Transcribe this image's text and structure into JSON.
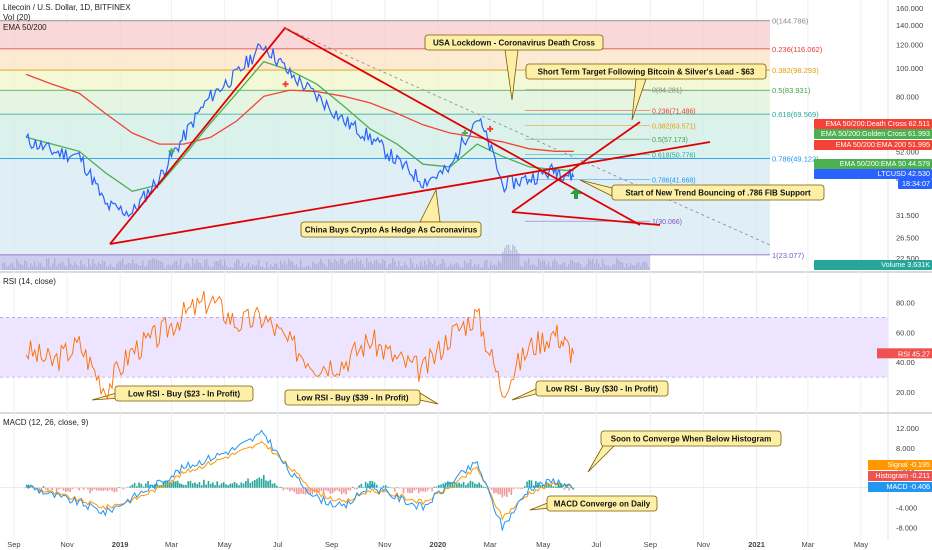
{
  "header": {
    "symbol_line": "Litecoin / U.S. Dollar, 1D, BITFINEX",
    "volume_indicator": "Vol (20)",
    "ema_indicator": "EMA 50/200"
  },
  "rsi_panel": {
    "title": "RSI (14, close)"
  },
  "macd_panel": {
    "title": "MACD (12, 26, close, 9)"
  },
  "colors": {
    "price": "#2962ff",
    "ema50": "#4caf50",
    "ema200": "#f44336",
    "trend": "#e00000",
    "rsi": "#ff6d00",
    "macd": "#2196f3",
    "signal": "#ff9800",
    "callout_bg": "#fdf0a6",
    "callout_border": "#7a5a00"
  },
  "chart_data": [
    {
      "type": "line",
      "panel": "price",
      "title": "Litecoin / U.S. Dollar, 1D, BITFINEX",
      "y_scale": "log",
      "ylim": [
        20.5,
        165
      ],
      "x": [
        "2018-09",
        "2018-10",
        "2018-11",
        "2018-12",
        "2019-01",
        "2019-02",
        "2019-03",
        "2019-04",
        "2019-05",
        "2019-06",
        "2019-07",
        "2019-08",
        "2019-09",
        "2019-10",
        "2019-11",
        "2019-12",
        "2020-01",
        "2020-02",
        "2020-03",
        "2020-04",
        "2020-05",
        "2020-06-05"
      ],
      "x_tick_labels": [
        "Sep",
        "Nov",
        "2019",
        "Mar",
        "May",
        "Jul",
        "Sep",
        "Nov",
        "2020",
        "Mar",
        "May",
        "Jul",
        "Sep",
        "Nov",
        "2021",
        "Mar",
        "May"
      ],
      "y_tick_labels": [
        "160.000",
        "140.000",
        "120.000",
        "100.000",
        "80.000",
        "65.000",
        "52.000",
        "42.000",
        "31.500",
        "26.500",
        "22.500"
      ],
      "series": [
        {
          "name": "LTCUSD",
          "values": [
            57,
            52,
            50,
            34,
            32,
            42,
            58,
            80,
            95,
            120,
            95,
            80,
            66,
            58,
            48,
            41,
            45,
            68,
            40,
            42,
            45,
            42.53
          ]
        },
        {
          "name": "EMA 50",
          "values": [
            58,
            55,
            52,
            44,
            38,
            40,
            50,
            65,
            82,
            105,
            98,
            88,
            74,
            62,
            55,
            47,
            46,
            55,
            50,
            46,
            45,
            44.58
          ]
        },
        {
          "name": "EMA 200",
          "values": [
            95,
            88,
            82,
            70,
            60,
            55,
            55,
            58,
            66,
            80,
            84,
            83,
            80,
            76,
            70,
            64,
            60,
            58,
            56,
            53,
            52,
            51.99
          ]
        }
      ],
      "fib_levels": [
        {
          "label": "0(144.786)",
          "value": 144.786
        },
        {
          "label": "0.236(116.062)",
          "value": 116.062
        },
        {
          "label": "0.382(98.293)",
          "value": 98.293
        },
        {
          "label": "0.5(83.931)",
          "value": 83.931
        },
        {
          "label": "0.618(69.569)",
          "value": 69.569
        },
        {
          "label": "0.786(49.122)",
          "value": 49.122
        },
        {
          "label": "1(23.077)",
          "value": 23.077
        }
      ],
      "fib_levels_inner": [
        {
          "label": "0(84.281)",
          "value": 84.281
        },
        {
          "label": "0.236(71.486)",
          "value": 71.486
        },
        {
          "label": "0.382(63.571)",
          "value": 63.571
        },
        {
          "label": "0.5(57.173)",
          "value": 57.173
        },
        {
          "label": "0.618(50.776)",
          "value": 50.776
        },
        {
          "label": "0.786(41.668)",
          "value": 41.668
        },
        {
          "label": "1(30.066)",
          "value": 30.066
        }
      ],
      "price_tags": [
        {
          "label": "EMA 50/200:Death Cross",
          "value": "62.511",
          "color": "#f44336"
        },
        {
          "label": "EMA 50/200:Golden Cross",
          "value": "61.993",
          "color": "#4caf50"
        },
        {
          "label": "EMA 50/200:EMA 200",
          "value": "51.995",
          "color": "#f44336"
        },
        {
          "label": "EMA 50/200:EMA 50",
          "value": "44.579",
          "color": "#4caf50"
        },
        {
          "label": "LTCUSD",
          "value": "42.530",
          "color": "#2962ff"
        },
        {
          "label": "",
          "value": "18:34:07",
          "color": "#2962ff"
        },
        {
          "label": "Volume",
          "value": "3.631K",
          "color": "#26a69a"
        }
      ],
      "annotations": [
        "USA Lockdown - Coronavirus Death Cross",
        "Short Term Target Following Bitcoin & Silver's Lead - $63",
        "Start of New Trend Bouncing of .786 FIB Support",
        "China Buys Crypto As Hedge As Coronavirus"
      ]
    },
    {
      "type": "line",
      "panel": "rsi",
      "title": "RSI (14, close)",
      "ylim": [
        10,
        95
      ],
      "y_tick_labels": [
        "80.00",
        "60.00",
        "40.00",
        "20.00"
      ],
      "band": [
        30,
        70
      ],
      "x": [
        "2018-09",
        "2018-10",
        "2018-11",
        "2018-12",
        "2019-01",
        "2019-02",
        "2019-03",
        "2019-04",
        "2019-05",
        "2019-06",
        "2019-07",
        "2019-08",
        "2019-09",
        "2019-10",
        "2019-11",
        "2019-12",
        "2020-01",
        "2020-02",
        "2020-03",
        "2020-04",
        "2020-05",
        "2020-06-05"
      ],
      "series": [
        {
          "name": "RSI",
          "values": [
            48,
            40,
            52,
            22,
            48,
            58,
            72,
            82,
            66,
            70,
            52,
            38,
            40,
            55,
            42,
            34,
            58,
            72,
            22,
            50,
            60,
            45.27
          ]
        }
      ],
      "current_tag": {
        "label": "RSI",
        "value": "45.27"
      },
      "annotations": [
        "Low RSI - Buy ($23 - In Profit)",
        "Low RSI - Buy ($39 - In Profit)",
        "Low RSI - Buy ($30 - In Profit)"
      ]
    },
    {
      "type": "line",
      "panel": "macd",
      "title": "MACD (12, 26, close, 9)",
      "ylim": [
        -10.5,
        14
      ],
      "y_tick_labels": [
        "12.000",
        "8.000",
        "4.000",
        "-4.000",
        "-8.000"
      ],
      "x": [
        "2018-09",
        "2018-10",
        "2018-11",
        "2018-12",
        "2019-01",
        "2019-02",
        "2019-03",
        "2019-04",
        "2019-05",
        "2019-06",
        "2019-07",
        "2019-08",
        "2019-09",
        "2019-10",
        "2019-11",
        "2019-12",
        "2020-01",
        "2020-02",
        "2020-03",
        "2020-04",
        "2020-05",
        "2020-06-05"
      ],
      "series": [
        {
          "name": "MACD",
          "values": [
            0.5,
            -1.5,
            -3,
            -5,
            -2,
            1,
            4,
            6,
            8,
            11,
            3,
            -2,
            -4,
            0.5,
            -2,
            -4,
            1,
            5,
            -8,
            0,
            1.5,
            -0.406
          ]
        },
        {
          "name": "Signal",
          "values": [
            0.3,
            -1,
            -2.5,
            -4,
            -2.5,
            0,
            3,
            5,
            7,
            9,
            4,
            -1,
            -3,
            -0.5,
            -1.5,
            -3,
            0,
            4,
            -6,
            -1,
            1,
            -0.195
          ]
        },
        {
          "name": "Histogram",
          "values": [
            0.2,
            -0.5,
            -0.5,
            -1,
            0.5,
            1,
            1,
            1,
            1,
            2,
            -1,
            -1,
            -1,
            1,
            -0.5,
            -1,
            1,
            1,
            -2,
            1,
            0.5,
            -0.211
          ]
        }
      ],
      "current_tags": [
        {
          "label": "Signal",
          "value": "-0.195"
        },
        {
          "label": "Histogram",
          "value": "-0.211"
        },
        {
          "label": "MACD",
          "value": "-0.406"
        }
      ],
      "annotations": [
        "Soon to Converge When Below Histogram",
        "MACD Converge on Daily"
      ]
    }
  ]
}
